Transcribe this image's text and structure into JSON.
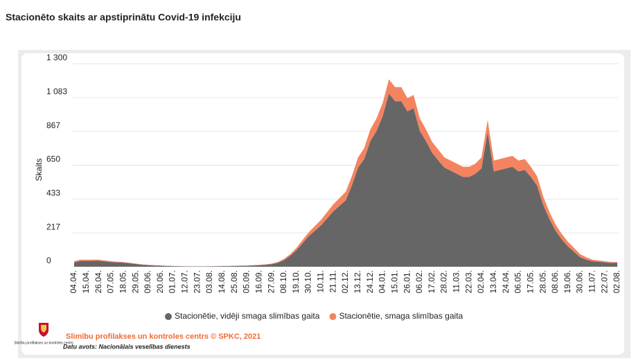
{
  "chart_data": {
    "type": "stacked_area",
    "title": "Stacionēto skaits ar apstiprinātu Covid-19 infekciju",
    "y_label": "Skaits",
    "categories": [
      "04.04.",
      null,
      "15.04.",
      null,
      "26.04.",
      null,
      "07.05.",
      null,
      "18.05.",
      null,
      "29.05.",
      null,
      "09.06.",
      null,
      "20.06.",
      null,
      "01.07.",
      null,
      "12.07.",
      null,
      "23.07.",
      null,
      "03.08.",
      null,
      "14.08.",
      null,
      "25.08.",
      null,
      "05.09.",
      null,
      "16.09.",
      null,
      "27.09.",
      null,
      "08.10.",
      null,
      "19.10.",
      null,
      "30.10.",
      null,
      "10.11.",
      null,
      "21.11.",
      null,
      "02.12.",
      null,
      "13.12.",
      null,
      "24.12.",
      null,
      "04.01.",
      null,
      "15.01.",
      null,
      "26.01.",
      null,
      "06.02.",
      null,
      "17.02.",
      null,
      "28.02.",
      null,
      "11.03.",
      null,
      "22.03.",
      null,
      "02.04.",
      null,
      "13.04.",
      null,
      "24.04.",
      null,
      "06.05.",
      null,
      "17.05.",
      null,
      "28.05.",
      null,
      "08.06.",
      null,
      "19.06.",
      null,
      "30.06.",
      null,
      "11.07.",
      null,
      "22.07.",
      null,
      "02.08."
    ],
    "series": [
      {
        "name": "Stacionētie, vidēji smaga slimības gaita",
        "color": "#666666",
        "values": [
          27,
          37,
          37,
          37,
          38,
          34,
          30,
          27,
          26,
          22,
          17,
          13,
          10,
          8,
          7,
          5,
          4,
          3,
          2,
          2,
          2,
          2,
          2,
          3,
          4,
          4,
          5,
          6,
          6,
          8,
          10,
          12,
          16,
          25,
          42,
          70,
          105,
          150,
          195,
          230,
          265,
          310,
          355,
          390,
          425,
          520,
          635,
          690,
          805,
          870,
          965,
          1110,
          1060,
          1060,
          995,
          1015,
          870,
          805,
          730,
          680,
          635,
          615,
          595,
          575,
          575,
          595,
          630,
          860,
          610,
          620,
          630,
          640,
          610,
          620,
          575,
          520,
          395,
          305,
          230,
          175,
          130,
          95,
          60,
          45,
          35,
          32,
          28,
          24,
          25
        ]
      },
      {
        "name": "Stacionētie, smaga slimības gaita",
        "color": "#f4845f",
        "values": [
          8,
          8,
          8,
          8,
          7,
          6,
          5,
          5,
          4,
          3,
          3,
          2,
          2,
          2,
          1,
          1,
          1,
          1,
          1,
          0,
          0,
          0,
          1,
          1,
          1,
          1,
          1,
          1,
          2,
          2,
          2,
          3,
          4,
          5,
          8,
          10,
          15,
          20,
          25,
          30,
          35,
          40,
          45,
          50,
          55,
          60,
          65,
          70,
          75,
          80,
          85,
          90,
          90,
          90,
          85,
          85,
          80,
          75,
          70,
          70,
          65,
          65,
          65,
          65,
          65,
          65,
          70,
          80,
          70,
          70,
          70,
          70,
          70,
          70,
          65,
          60,
          55,
          45,
          40,
          35,
          30,
          25,
          20,
          15,
          10,
          8,
          7,
          6,
          5
        ]
      }
    ],
    "ylim": [
      0,
      1300
    ],
    "yticks": [
      0,
      217,
      433,
      650,
      867,
      {
        "value": 1083,
        "label": "1 083"
      },
      {
        "value": 1300,
        "label": "1 300"
      }
    ],
    "grid": true,
    "legend": "bottom",
    "source": "Slimību profilakses un kontroles centrs © SPKC, 2021",
    "data_source": "Datu avots: Nacionālais veselības dienests",
    "logo_text": "Slimību profilakses un kontroles centrs"
  }
}
